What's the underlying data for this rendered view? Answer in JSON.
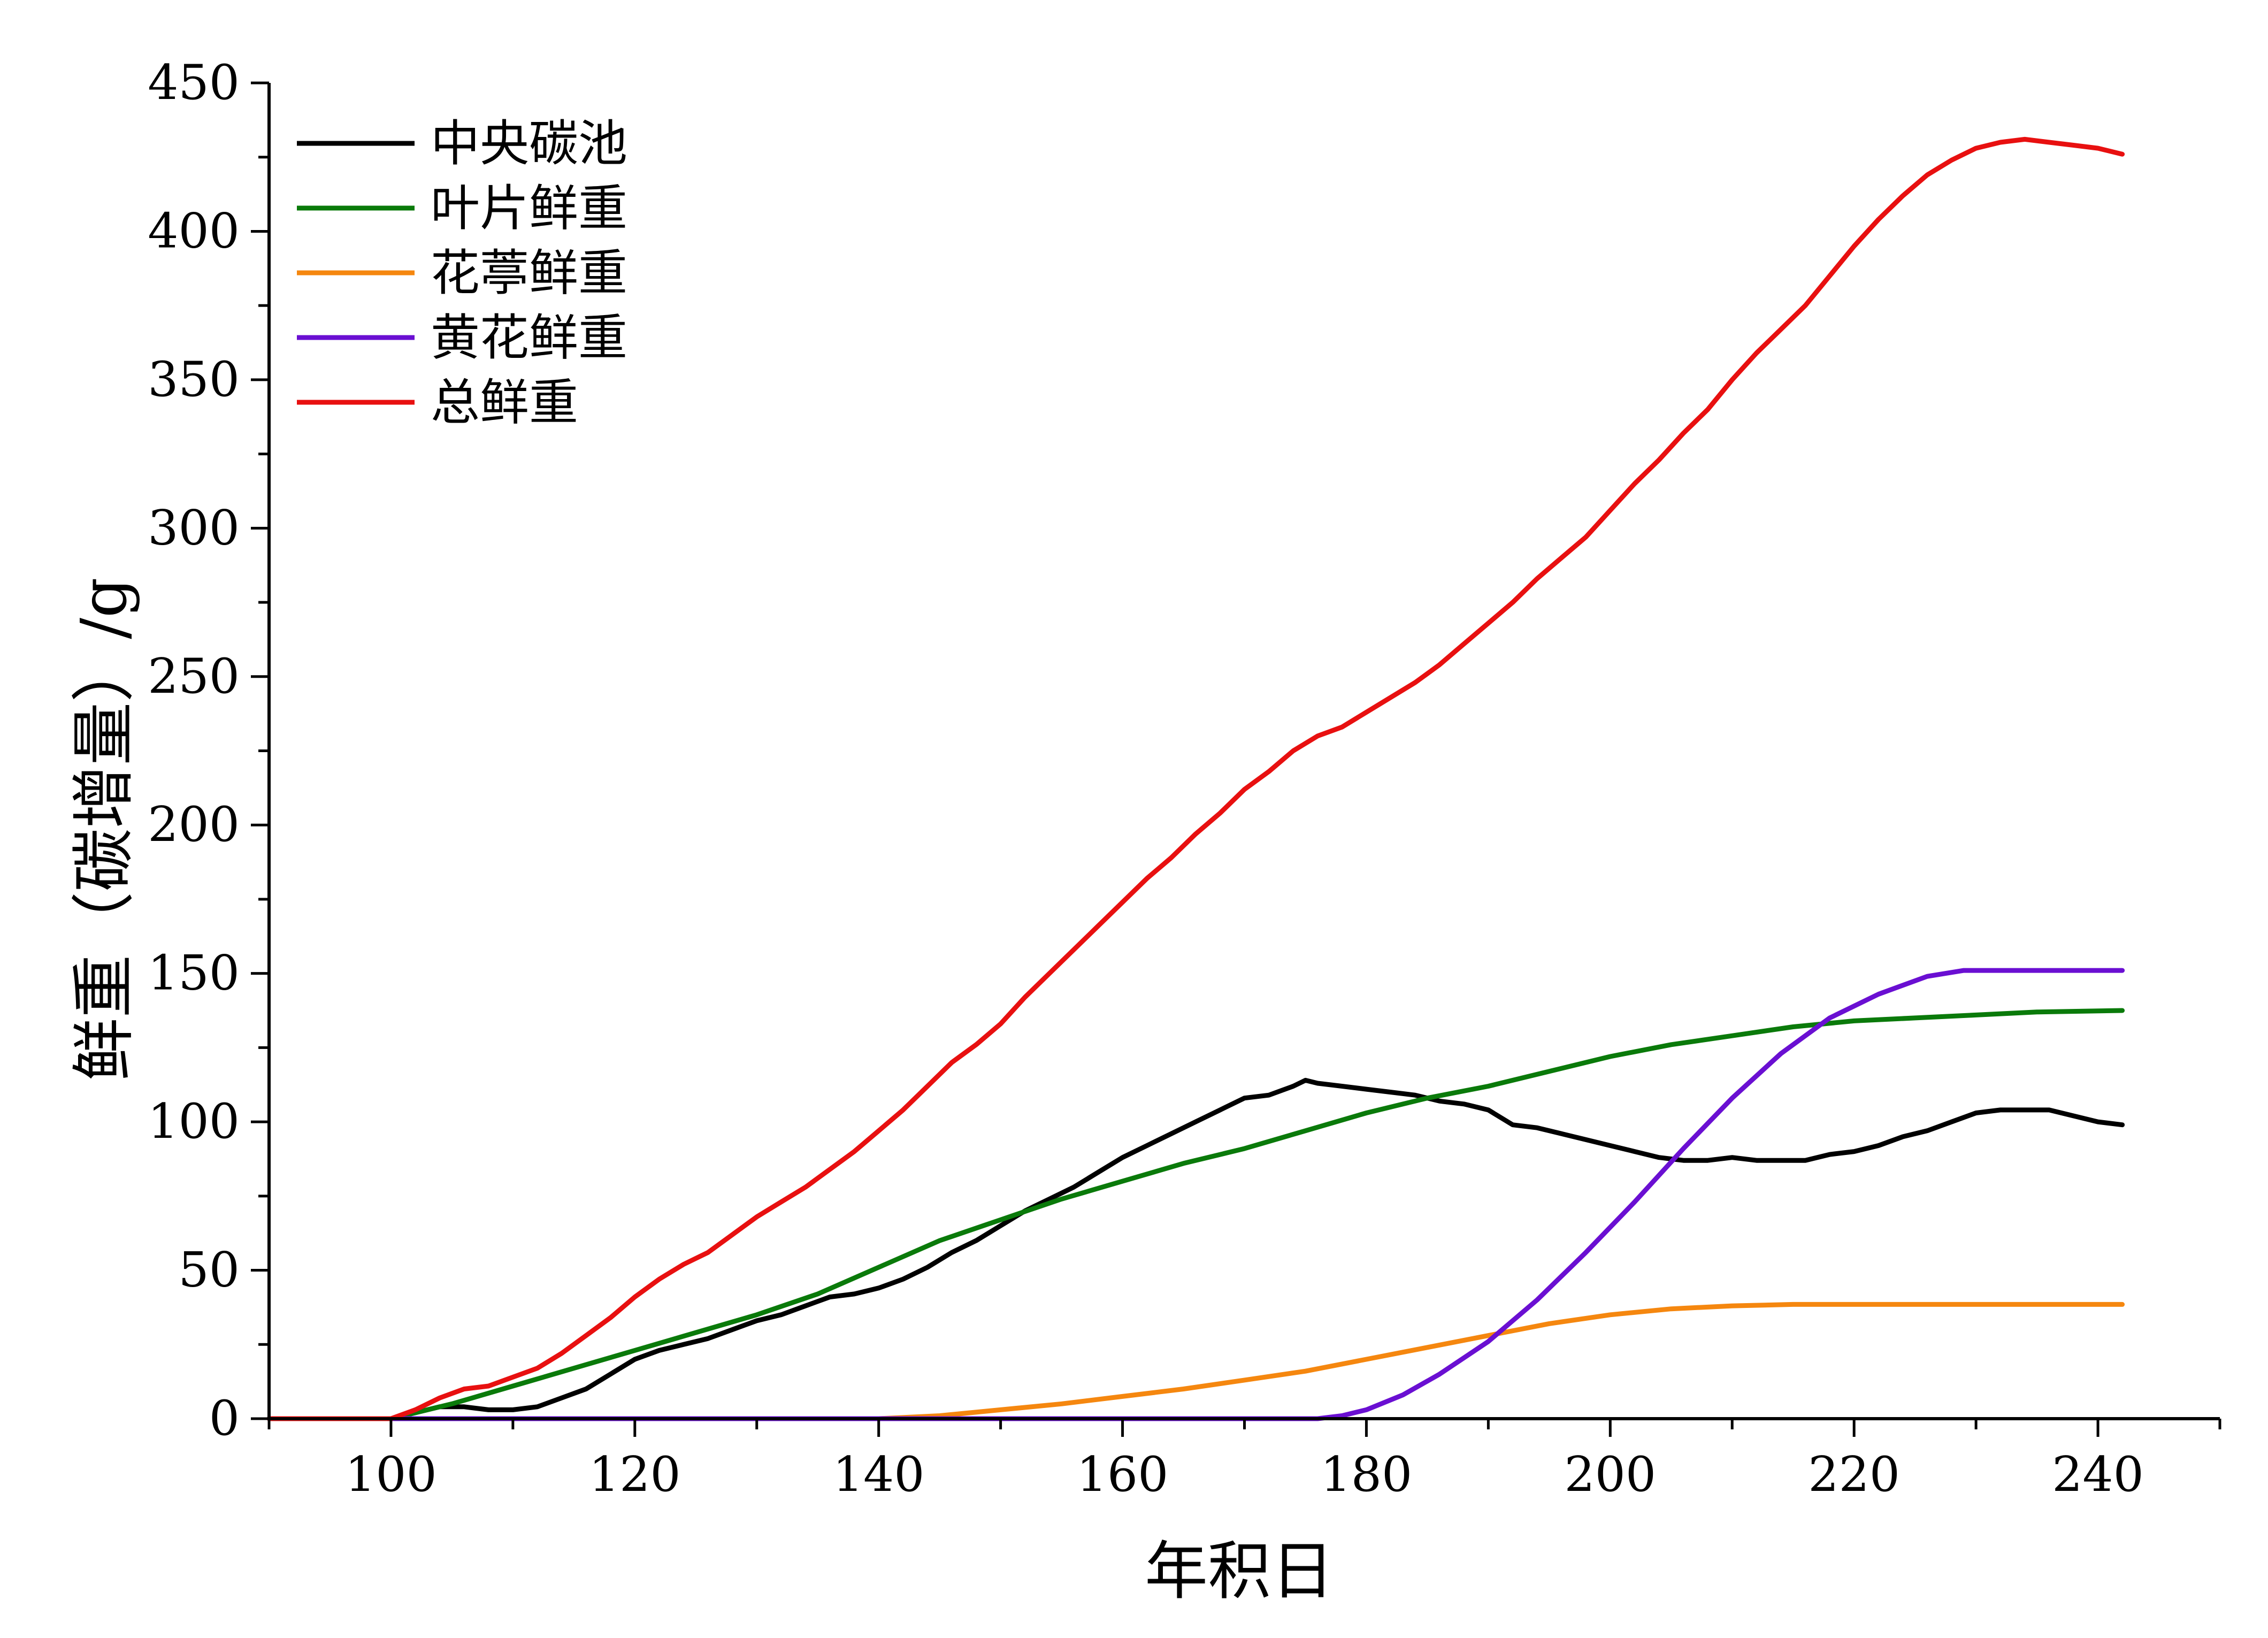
{
  "chart_data": {
    "type": "line",
    "title": "",
    "xlabel": "年积日",
    "ylabel": "鲜重（碳增量）/g",
    "xlim": [
      90,
      250
    ],
    "ylim": [
      0,
      450
    ],
    "x_ticks": [
      100,
      120,
      140,
      160,
      180,
      200,
      220,
      240
    ],
    "y_ticks": [
      0,
      50,
      100,
      150,
      200,
      250,
      300,
      350,
      400,
      450
    ],
    "grid": false,
    "legend_position": "top-left",
    "series": [
      {
        "name": "中央碳池",
        "color": "#000000",
        "points": [
          [
            90,
            0
          ],
          [
            100,
            0
          ],
          [
            102,
            2
          ],
          [
            104,
            4
          ],
          [
            106,
            4
          ],
          [
            108,
            3
          ],
          [
            110,
            3
          ],
          [
            112,
            4
          ],
          [
            114,
            7
          ],
          [
            116,
            10
          ],
          [
            118,
            15
          ],
          [
            120,
            20
          ],
          [
            122,
            23
          ],
          [
            124,
            25
          ],
          [
            126,
            27
          ],
          [
            128,
            30
          ],
          [
            130,
            33
          ],
          [
            132,
            35
          ],
          [
            134,
            38
          ],
          [
            136,
            41
          ],
          [
            138,
            42
          ],
          [
            140,
            44
          ],
          [
            142,
            47
          ],
          [
            144,
            51
          ],
          [
            146,
            56
          ],
          [
            148,
            60
          ],
          [
            150,
            65
          ],
          [
            152,
            70
          ],
          [
            154,
            74
          ],
          [
            156,
            78
          ],
          [
            158,
            83
          ],
          [
            160,
            88
          ],
          [
            162,
            92
          ],
          [
            164,
            96
          ],
          [
            166,
            100
          ],
          [
            168,
            104
          ],
          [
            170,
            108
          ],
          [
            172,
            109
          ],
          [
            174,
            112
          ],
          [
            175,
            114
          ],
          [
            176,
            113
          ],
          [
            178,
            112
          ],
          [
            180,
            111
          ],
          [
            182,
            110
          ],
          [
            184,
            109
          ],
          [
            186,
            107
          ],
          [
            188,
            106
          ],
          [
            190,
            104
          ],
          [
            192,
            99
          ],
          [
            194,
            98
          ],
          [
            196,
            96
          ],
          [
            198,
            94
          ],
          [
            200,
            92
          ],
          [
            202,
            90
          ],
          [
            204,
            88
          ],
          [
            206,
            87
          ],
          [
            208,
            87
          ],
          [
            210,
            88
          ],
          [
            212,
            87
          ],
          [
            214,
            87
          ],
          [
            216,
            87
          ],
          [
            218,
            89
          ],
          [
            220,
            90
          ],
          [
            222,
            92
          ],
          [
            224,
            95
          ],
          [
            226,
            97
          ],
          [
            228,
            100
          ],
          [
            230,
            103
          ],
          [
            232,
            104
          ],
          [
            234,
            104
          ],
          [
            236,
            104
          ],
          [
            238,
            102
          ],
          [
            240,
            100
          ],
          [
            242,
            99
          ]
        ]
      },
      {
        "name": "叶片鲜重",
        "color": "#0a7a0a",
        "points": [
          [
            90,
            0
          ],
          [
            100,
            0
          ],
          [
            102,
            2
          ],
          [
            105,
            5
          ],
          [
            110,
            11
          ],
          [
            115,
            17
          ],
          [
            120,
            23
          ],
          [
            125,
            29
          ],
          [
            130,
            35
          ],
          [
            135,
            42
          ],
          [
            140,
            51
          ],
          [
            145,
            60
          ],
          [
            150,
            67
          ],
          [
            155,
            74
          ],
          [
            160,
            80
          ],
          [
            165,
            86
          ],
          [
            170,
            91
          ],
          [
            175,
            97
          ],
          [
            180,
            103
          ],
          [
            185,
            108
          ],
          [
            190,
            112
          ],
          [
            195,
            117
          ],
          [
            200,
            122
          ],
          [
            205,
            126
          ],
          [
            210,
            129
          ],
          [
            215,
            132
          ],
          [
            220,
            134
          ],
          [
            225,
            135
          ],
          [
            230,
            136
          ],
          [
            235,
            137
          ],
          [
            242,
            137.5
          ]
        ]
      },
      {
        "name": "花葶鲜重",
        "color": "#f5870f",
        "points": [
          [
            90,
            0
          ],
          [
            140,
            0
          ],
          [
            145,
            1
          ],
          [
            150,
            3
          ],
          [
            155,
            5
          ],
          [
            160,
            7.5
          ],
          [
            165,
            10
          ],
          [
            170,
            13
          ],
          [
            175,
            16
          ],
          [
            180,
            20
          ],
          [
            185,
            24
          ],
          [
            190,
            28
          ],
          [
            195,
            32
          ],
          [
            200,
            35
          ],
          [
            205,
            37
          ],
          [
            210,
            38
          ],
          [
            215,
            38.5
          ],
          [
            220,
            38.5
          ],
          [
            230,
            38.5
          ],
          [
            242,
            38.5
          ]
        ]
      },
      {
        "name": "黄花鲜重",
        "color": "#6a0fd2",
        "points": [
          [
            90,
            0
          ],
          [
            176,
            0
          ],
          [
            178,
            1
          ],
          [
            180,
            3
          ],
          [
            183,
            8
          ],
          [
            186,
            15
          ],
          [
            190,
            26
          ],
          [
            194,
            40
          ],
          [
            198,
            56
          ],
          [
            202,
            73
          ],
          [
            206,
            91
          ],
          [
            210,
            108
          ],
          [
            214,
            123
          ],
          [
            218,
            135
          ],
          [
            222,
            143
          ],
          [
            226,
            149
          ],
          [
            229,
            151
          ],
          [
            232,
            151
          ],
          [
            236,
            151
          ],
          [
            242,
            151
          ]
        ]
      },
      {
        "name": "总鲜重",
        "color": "#e81010",
        "points": [
          [
            90,
            0
          ],
          [
            100,
            0
          ],
          [
            102,
            3
          ],
          [
            104,
            7
          ],
          [
            106,
            10
          ],
          [
            108,
            11
          ],
          [
            110,
            14
          ],
          [
            112,
            17
          ],
          [
            114,
            22
          ],
          [
            116,
            28
          ],
          [
            118,
            34
          ],
          [
            120,
            41
          ],
          [
            122,
            47
          ],
          [
            124,
            52
          ],
          [
            126,
            56
          ],
          [
            128,
            62
          ],
          [
            130,
            68
          ],
          [
            132,
            73
          ],
          [
            134,
            78
          ],
          [
            136,
            84
          ],
          [
            138,
            90
          ],
          [
            140,
            97
          ],
          [
            142,
            104
          ],
          [
            144,
            112
          ],
          [
            146,
            120
          ],
          [
            148,
            126
          ],
          [
            150,
            133
          ],
          [
            152,
            142
          ],
          [
            154,
            150
          ],
          [
            156,
            158
          ],
          [
            158,
            166
          ],
          [
            160,
            174
          ],
          [
            162,
            182
          ],
          [
            164,
            189
          ],
          [
            166,
            197
          ],
          [
            168,
            204
          ],
          [
            170,
            212
          ],
          [
            172,
            218
          ],
          [
            174,
            225
          ],
          [
            176,
            230
          ],
          [
            178,
            233
          ],
          [
            180,
            238
          ],
          [
            182,
            243
          ],
          [
            184,
            248
          ],
          [
            186,
            254
          ],
          [
            188,
            261
          ],
          [
            190,
            268
          ],
          [
            192,
            275
          ],
          [
            194,
            283
          ],
          [
            196,
            290
          ],
          [
            198,
            297
          ],
          [
            200,
            306
          ],
          [
            202,
            315
          ],
          [
            204,
            323
          ],
          [
            206,
            332
          ],
          [
            208,
            340
          ],
          [
            210,
            350
          ],
          [
            212,
            359
          ],
          [
            214,
            367
          ],
          [
            216,
            375
          ],
          [
            218,
            385
          ],
          [
            220,
            395
          ],
          [
            222,
            404
          ],
          [
            224,
            412
          ],
          [
            226,
            419
          ],
          [
            228,
            424
          ],
          [
            230,
            428
          ],
          [
            232,
            430
          ],
          [
            234,
            431
          ],
          [
            236,
            430
          ],
          [
            238,
            429
          ],
          [
            240,
            428
          ],
          [
            242,
            426
          ]
        ]
      }
    ]
  }
}
